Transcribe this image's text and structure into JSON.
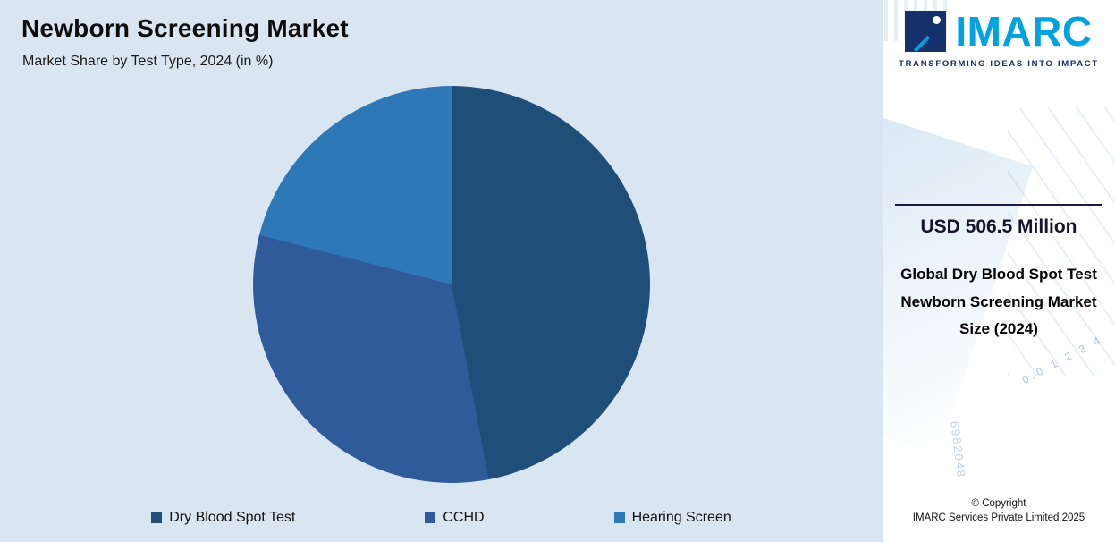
{
  "header": {
    "title": "Newborn Screening Market",
    "subtitle": "Market Share by Test Type, 2024 (in %)"
  },
  "chart_data": {
    "type": "pie",
    "title": "Newborn Screening Market",
    "subtitle": "Market Share by Test Type, 2024 (in %)",
    "categories": [
      "Dry Blood Spot Test",
      "CCHD",
      "Hearing Screen"
    ],
    "values": [
      47,
      32,
      21
    ],
    "colors": [
      "#1f4e79",
      "#2f5b9a",
      "#2e78b8"
    ],
    "start_angle_deg": 0,
    "direction": "clockwise",
    "legend_position": "bottom",
    "background_color": "#d9e6f2"
  },
  "sidebar": {
    "logo_text": "IMARC",
    "tagline": "TRANSFORMING IDEAS INTO IMPACT",
    "stat_value": "USD 506.5 Million",
    "stat_label": "Global Dry Blood Spot Test Newborn Screening Market Size (2024)",
    "copyright_line1": "© Copyright",
    "copyright_line2": "IMARC Services Private Limited 2025",
    "watermarks": [
      "0.0 1 2 3 4",
      "6982048"
    ]
  }
}
